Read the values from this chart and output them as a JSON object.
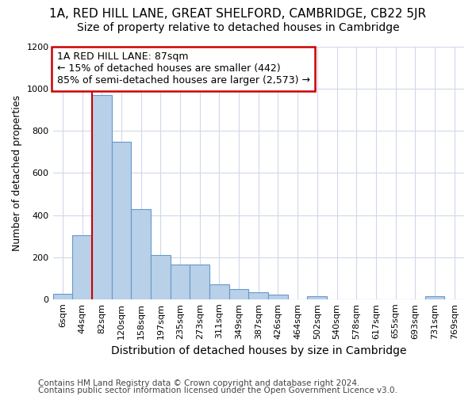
{
  "title": "1A, RED HILL LANE, GREAT SHELFORD, CAMBRIDGE, CB22 5JR",
  "subtitle": "Size of property relative to detached houses in Cambridge",
  "xlabel": "Distribution of detached houses by size in Cambridge",
  "ylabel": "Number of detached properties",
  "bar_labels": [
    "6sqm",
    "44sqm",
    "82sqm",
    "120sqm",
    "158sqm",
    "197sqm",
    "235sqm",
    "273sqm",
    "311sqm",
    "349sqm",
    "387sqm",
    "426sqm",
    "464sqm",
    "502sqm",
    "540sqm",
    "578sqm",
    "617sqm",
    "655sqm",
    "693sqm",
    "731sqm",
    "769sqm"
  ],
  "bar_values": [
    25,
    305,
    970,
    750,
    430,
    210,
    165,
    165,
    70,
    48,
    32,
    22,
    0,
    13,
    0,
    0,
    0,
    0,
    0,
    13,
    0
  ],
  "bar_color": "#b8d0e8",
  "bar_edge_color": "#6699cc",
  "vline_color": "#cc0000",
  "vline_index": 2,
  "annotation_text": "1A RED HILL LANE: 87sqm\n← 15% of detached houses are smaller (442)\n85% of semi-detached houses are larger (2,573) →",
  "annotation_box_edgecolor": "#cc0000",
  "ylim": [
    0,
    1200
  ],
  "yticks": [
    0,
    200,
    400,
    600,
    800,
    1000,
    1200
  ],
  "footer1": "Contains HM Land Registry data © Crown copyright and database right 2024.",
  "footer2": "Contains public sector information licensed under the Open Government Licence v3.0.",
  "bg_color": "#ffffff",
  "plot_bg_color": "#ffffff",
  "grid_color": "#d0d8e8",
  "title_fontsize": 11,
  "subtitle_fontsize": 10,
  "xlabel_fontsize": 10,
  "ylabel_fontsize": 9,
  "tick_fontsize": 8,
  "annotation_fontsize": 9,
  "footer_fontsize": 7.5
}
